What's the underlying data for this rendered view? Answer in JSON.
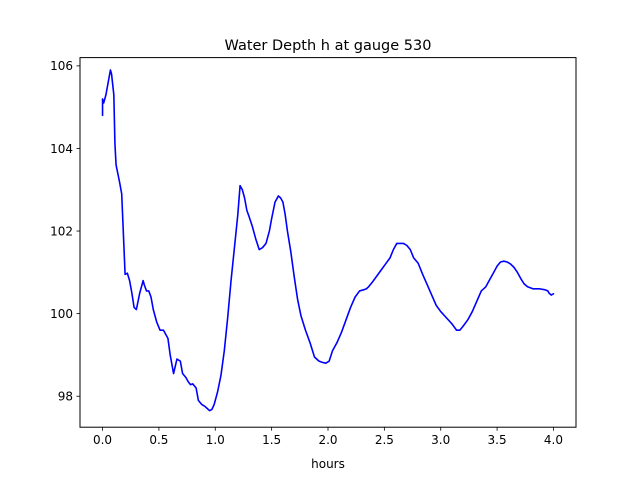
{
  "chart_data": {
    "type": "line",
    "title": "Water Depth h at gauge 530",
    "xlabel": "hours",
    "ylabel": "",
    "xlim": [
      -0.2,
      4.2
    ],
    "ylim": [
      97.25,
      106.2
    ],
    "xticks": [
      0.0,
      0.5,
      1.0,
      1.5,
      2.0,
      2.5,
      3.0,
      3.5,
      4.0
    ],
    "xtick_labels": [
      "0.0",
      "0.5",
      "1.0",
      "1.5",
      "2.0",
      "2.5",
      "3.0",
      "3.5",
      "4.0"
    ],
    "yticks": [
      98,
      100,
      102,
      104,
      106
    ],
    "ytick_labels": [
      "98",
      "100",
      "102",
      "104",
      "106"
    ],
    "grid": false,
    "series": [
      {
        "color": "#0000ff",
        "x": [
          0.0,
          0.0,
          0.01,
          0.03,
          0.05,
          0.07,
          0.08,
          0.1,
          0.11,
          0.12,
          0.15,
          0.17,
          0.19,
          0.2,
          0.22,
          0.24,
          0.26,
          0.28,
          0.3,
          0.33,
          0.36,
          0.37,
          0.39,
          0.41,
          0.43,
          0.45,
          0.48,
          0.51,
          0.54,
          0.58,
          0.6,
          0.63,
          0.66,
          0.69,
          0.71,
          0.74,
          0.76,
          0.78,
          0.8,
          0.83,
          0.85,
          0.88,
          0.91,
          0.93,
          0.95,
          0.97,
          0.99,
          1.02,
          1.05,
          1.08,
          1.11,
          1.14,
          1.17,
          1.2,
          1.22,
          1.24,
          1.26,
          1.28,
          1.3,
          1.33,
          1.36,
          1.39,
          1.42,
          1.45,
          1.48,
          1.5,
          1.53,
          1.56,
          1.58,
          1.6,
          1.62,
          1.64,
          1.67,
          1.7,
          1.73,
          1.76,
          1.8,
          1.84,
          1.88,
          1.92,
          1.95,
          1.98,
          2.01,
          2.04,
          2.08,
          2.12,
          2.16,
          2.2,
          2.24,
          2.28,
          2.32,
          2.34,
          2.36,
          2.39,
          2.43,
          2.47,
          2.51,
          2.55,
          2.58,
          2.61,
          2.64,
          2.67,
          2.7,
          2.73,
          2.76,
          2.8,
          2.84,
          2.88,
          2.92,
          2.96,
          3.0,
          3.05,
          3.1,
          3.14,
          3.17,
          3.2,
          3.24,
          3.28,
          3.32,
          3.36,
          3.4,
          3.42,
          3.44,
          3.47,
          3.5,
          3.53,
          3.56,
          3.59,
          3.62,
          3.65,
          3.68,
          3.71,
          3.74,
          3.77,
          3.8,
          3.82,
          3.85,
          3.88,
          3.92,
          3.95,
          3.96,
          3.98,
          4.0
        ],
        "y": [
          104.8,
          105.2,
          105.1,
          105.3,
          105.6,
          105.9,
          105.8,
          105.3,
          104.1,
          103.6,
          103.2,
          102.9,
          101.6,
          100.95,
          100.98,
          100.8,
          100.5,
          100.15,
          100.1,
          100.5,
          100.8,
          100.7,
          100.55,
          100.55,
          100.4,
          100.1,
          99.8,
          99.6,
          99.6,
          99.4,
          99.0,
          98.55,
          98.9,
          98.85,
          98.55,
          98.45,
          98.35,
          98.28,
          98.3,
          98.2,
          97.9,
          97.8,
          97.75,
          97.7,
          97.65,
          97.68,
          97.8,
          98.1,
          98.5,
          99.1,
          99.9,
          100.8,
          101.6,
          102.4,
          103.1,
          103.0,
          102.8,
          102.5,
          102.35,
          102.1,
          101.8,
          101.55,
          101.6,
          101.7,
          102.0,
          102.3,
          102.7,
          102.85,
          102.8,
          102.7,
          102.4,
          102.0,
          101.5,
          100.9,
          100.35,
          99.95,
          99.6,
          99.3,
          98.95,
          98.85,
          98.82,
          98.8,
          98.85,
          99.1,
          99.3,
          99.55,
          99.85,
          100.15,
          100.4,
          100.55,
          100.58,
          100.6,
          100.65,
          100.75,
          100.9,
          101.05,
          101.2,
          101.35,
          101.55,
          101.7,
          101.7,
          101.7,
          101.65,
          101.55,
          101.35,
          101.22,
          100.95,
          100.7,
          100.45,
          100.2,
          100.05,
          99.9,
          99.75,
          99.6,
          99.6,
          99.7,
          99.85,
          100.05,
          100.3,
          100.55,
          100.65,
          100.75,
          100.85,
          101.0,
          101.15,
          101.25,
          101.27,
          101.25,
          101.2,
          101.12,
          101.0,
          100.85,
          100.72,
          100.65,
          100.62,
          100.6,
          100.6,
          100.6,
          100.58,
          100.55,
          100.5,
          100.45,
          100.48
        ]
      }
    ]
  }
}
